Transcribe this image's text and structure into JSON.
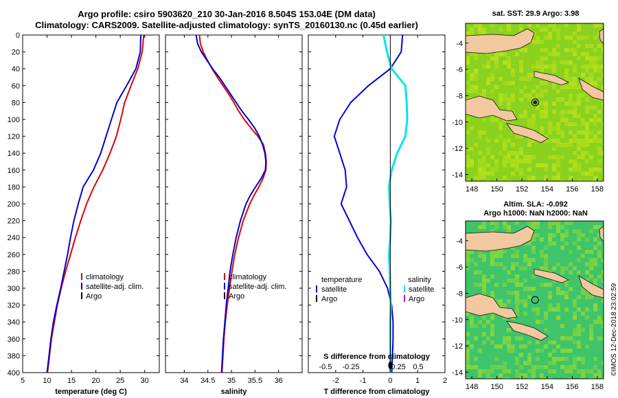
{
  "header": {
    "title_line1": "Argo profile: csiro 5903620_210 30-Jan-2016 8.504S 153.04E (DM data)",
    "title_line2": "Climatology: CARS2009. Satellite-adjusted climatology: synTS_20160130.nc (0.45d earlier)"
  },
  "maps": {
    "sst_title": "sat. SST: 29.9 Argo: 3.98",
    "sla_title_line1": "Altim. SLA: -0.092",
    "sla_title_line2": "Argo h1000: NaN h2000: NaN",
    "x_ticks": [
      "148",
      "150",
      "152",
      "154",
      "156",
      "158"
    ],
    "sst_y_ticks": [
      "-4",
      "-6",
      "-8",
      "-10",
      "-12",
      "-14"
    ],
    "sla_y_ticks": [
      "-4",
      "-6",
      "-8",
      "-10",
      "-12",
      "-14"
    ],
    "float_position": {
      "lon": 153.04,
      "lat": -8.504
    },
    "lon_range": [
      147.5,
      158.5
    ],
    "lat_range": [
      -14.5,
      -2.5
    ]
  },
  "footer": {
    "stamp": "©IMOS 12-Dec-2018 23:02:59"
  },
  "colors": {
    "climatology": "#e00000",
    "satellite": "#0000d0",
    "argo": "#000000",
    "s_satellite": "#00e5ee",
    "s_argo": "#cc00cc",
    "land": "#f2c8a0",
    "sst_green": "#8ad21e",
    "sla_green": "#3fc46a"
  },
  "chart_data": [
    {
      "type": "line",
      "xlabel": "temperature (deg C)",
      "ylabel": "",
      "xlim": [
        5,
        33
      ],
      "ylim": [
        0,
        400
      ],
      "x_ticks": [
        "5",
        "10",
        "15",
        "20",
        "25",
        "30"
      ],
      "y_ticks": [
        "0",
        "20",
        "40",
        "60",
        "80",
        "100",
        "120",
        "140",
        "160",
        "180",
        "200",
        "220",
        "240",
        "260",
        "280",
        "300",
        "320",
        "340",
        "360",
        "380",
        "400"
      ],
      "legend": [
        "climatology",
        "satellite-adj. clim.",
        "Argo"
      ],
      "series": [
        {
          "name": "climatology",
          "color": "#e00000",
          "depth": [
            0,
            20,
            40,
            60,
            80,
            100,
            120,
            140,
            160,
            180,
            200,
            220,
            240,
            260,
            280,
            300,
            320,
            340,
            360,
            380,
            400
          ],
          "values": [
            29.8,
            29.5,
            28.6,
            27.2,
            25.9,
            25.1,
            24.2,
            22.9,
            21.4,
            19.6,
            18.1,
            16.9,
            15.8,
            14.8,
            13.8,
            12.9,
            12.1,
            11.5,
            10.9,
            10.5,
            10.1
          ]
        },
        {
          "name": "satellite-adj. clim.",
          "color": "#0000d0",
          "depth": [
            0,
            20,
            40,
            60,
            80,
            100,
            120,
            140,
            160,
            180,
            200,
            220,
            240,
            260,
            280,
            300,
            320,
            340,
            360,
            380,
            400
          ],
          "values": [
            29.2,
            29.1,
            28.2,
            26.3,
            24.3,
            23.2,
            22.1,
            21.0,
            19.5,
            17.4,
            16.4,
            15.5,
            14.8,
            14.2,
            13.5,
            12.8,
            12.0,
            11.3,
            10.8,
            10.4,
            10.0
          ]
        }
      ]
    },
    {
      "type": "line",
      "xlabel": "salinity",
      "xlim": [
        33.6,
        36.5
      ],
      "ylim": [
        0,
        400
      ],
      "x_ticks": [
        "34",
        "34.5",
        "35",
        "35.5",
        "36"
      ],
      "legend": [
        "climatology",
        "satellite-adj. clim.",
        "Argo"
      ],
      "series": [
        {
          "name": "climatology",
          "color": "#e00000",
          "depth": [
            0,
            10,
            20,
            30,
            40,
            50,
            60,
            70,
            80,
            90,
            100,
            110,
            120,
            130,
            140,
            150,
            160,
            170,
            180,
            190,
            200,
            220,
            240,
            260,
            280,
            300,
            320,
            340,
            360,
            380,
            400
          ],
          "values": [
            34.32,
            34.34,
            34.4,
            34.49,
            34.59,
            34.7,
            34.82,
            34.94,
            35.05,
            35.15,
            35.27,
            35.41,
            35.56,
            35.68,
            35.72,
            35.74,
            35.73,
            35.67,
            35.58,
            35.48,
            35.39,
            35.25,
            35.15,
            35.07,
            35.01,
            34.96,
            34.91,
            34.87,
            34.84,
            34.82,
            34.8
          ]
        },
        {
          "name": "satellite-adj. clim.",
          "color": "#0000d0",
          "depth": [
            0,
            10,
            20,
            30,
            40,
            50,
            60,
            70,
            80,
            90,
            100,
            110,
            120,
            130,
            140,
            150,
            160,
            170,
            180,
            190,
            200,
            220,
            240,
            260,
            280,
            300,
            320,
            340,
            360,
            380,
            400
          ],
          "values": [
            34.25,
            34.28,
            34.36,
            34.48,
            34.6,
            34.74,
            34.86,
            34.98,
            35.1,
            35.22,
            35.36,
            35.49,
            35.59,
            35.66,
            35.71,
            35.73,
            35.72,
            35.63,
            35.51,
            35.4,
            35.31,
            35.19,
            35.1,
            35.03,
            34.97,
            34.93,
            34.89,
            34.86,
            34.83,
            34.81,
            34.79
          ]
        }
      ]
    },
    {
      "type": "line",
      "xlabel": "T difference from climatology",
      "x2label": "S difference from climatology",
      "xlim": [
        -3,
        2
      ],
      "ylim": [
        0,
        400
      ],
      "x_ticks": [
        "-2",
        "-1",
        "0",
        "1",
        "2"
      ],
      "x2_ticks": [
        "-0.5",
        "-0.25",
        "0",
        "0.25",
        "0.5"
      ],
      "legend_left_title": "temperature",
      "legend_right_title": "salinity",
      "legend_left": [
        "satellite",
        "Argo"
      ],
      "legend_right": [
        "satellite",
        "Argo"
      ],
      "series": [
        {
          "name": "T satellite",
          "color": "#0000d0",
          "depth": [
            0,
            20,
            40,
            60,
            80,
            100,
            120,
            140,
            160,
            180,
            200,
            220,
            240,
            260,
            280,
            300,
            320,
            340,
            360,
            380,
            400
          ],
          "values": [
            0.45,
            0.4,
            0.0,
            -0.8,
            -1.45,
            -1.85,
            -2.05,
            -1.85,
            -1.65,
            -1.6,
            -1.8,
            -1.5,
            -1.2,
            -0.85,
            -0.4,
            -0.1,
            0.05,
            0.1,
            0.1,
            0.08,
            0.05
          ]
        },
        {
          "name": "S satellite",
          "color": "#00e5ee",
          "depth": [
            0,
            20,
            40,
            60,
            80,
            100,
            120,
            140,
            160,
            180,
            200,
            220,
            240,
            260,
            280,
            300,
            320,
            340,
            360,
            380,
            400
          ],
          "values": [
            -0.25,
            -0.12,
            0.05,
            0.55,
            0.6,
            0.62,
            0.55,
            0.25,
            0.05,
            -0.05,
            -0.02,
            0.03,
            0.0,
            -0.05,
            -0.02,
            0.0,
            0.02,
            0.0,
            0.0,
            0.0,
            0.0
          ]
        }
      ]
    }
  ]
}
